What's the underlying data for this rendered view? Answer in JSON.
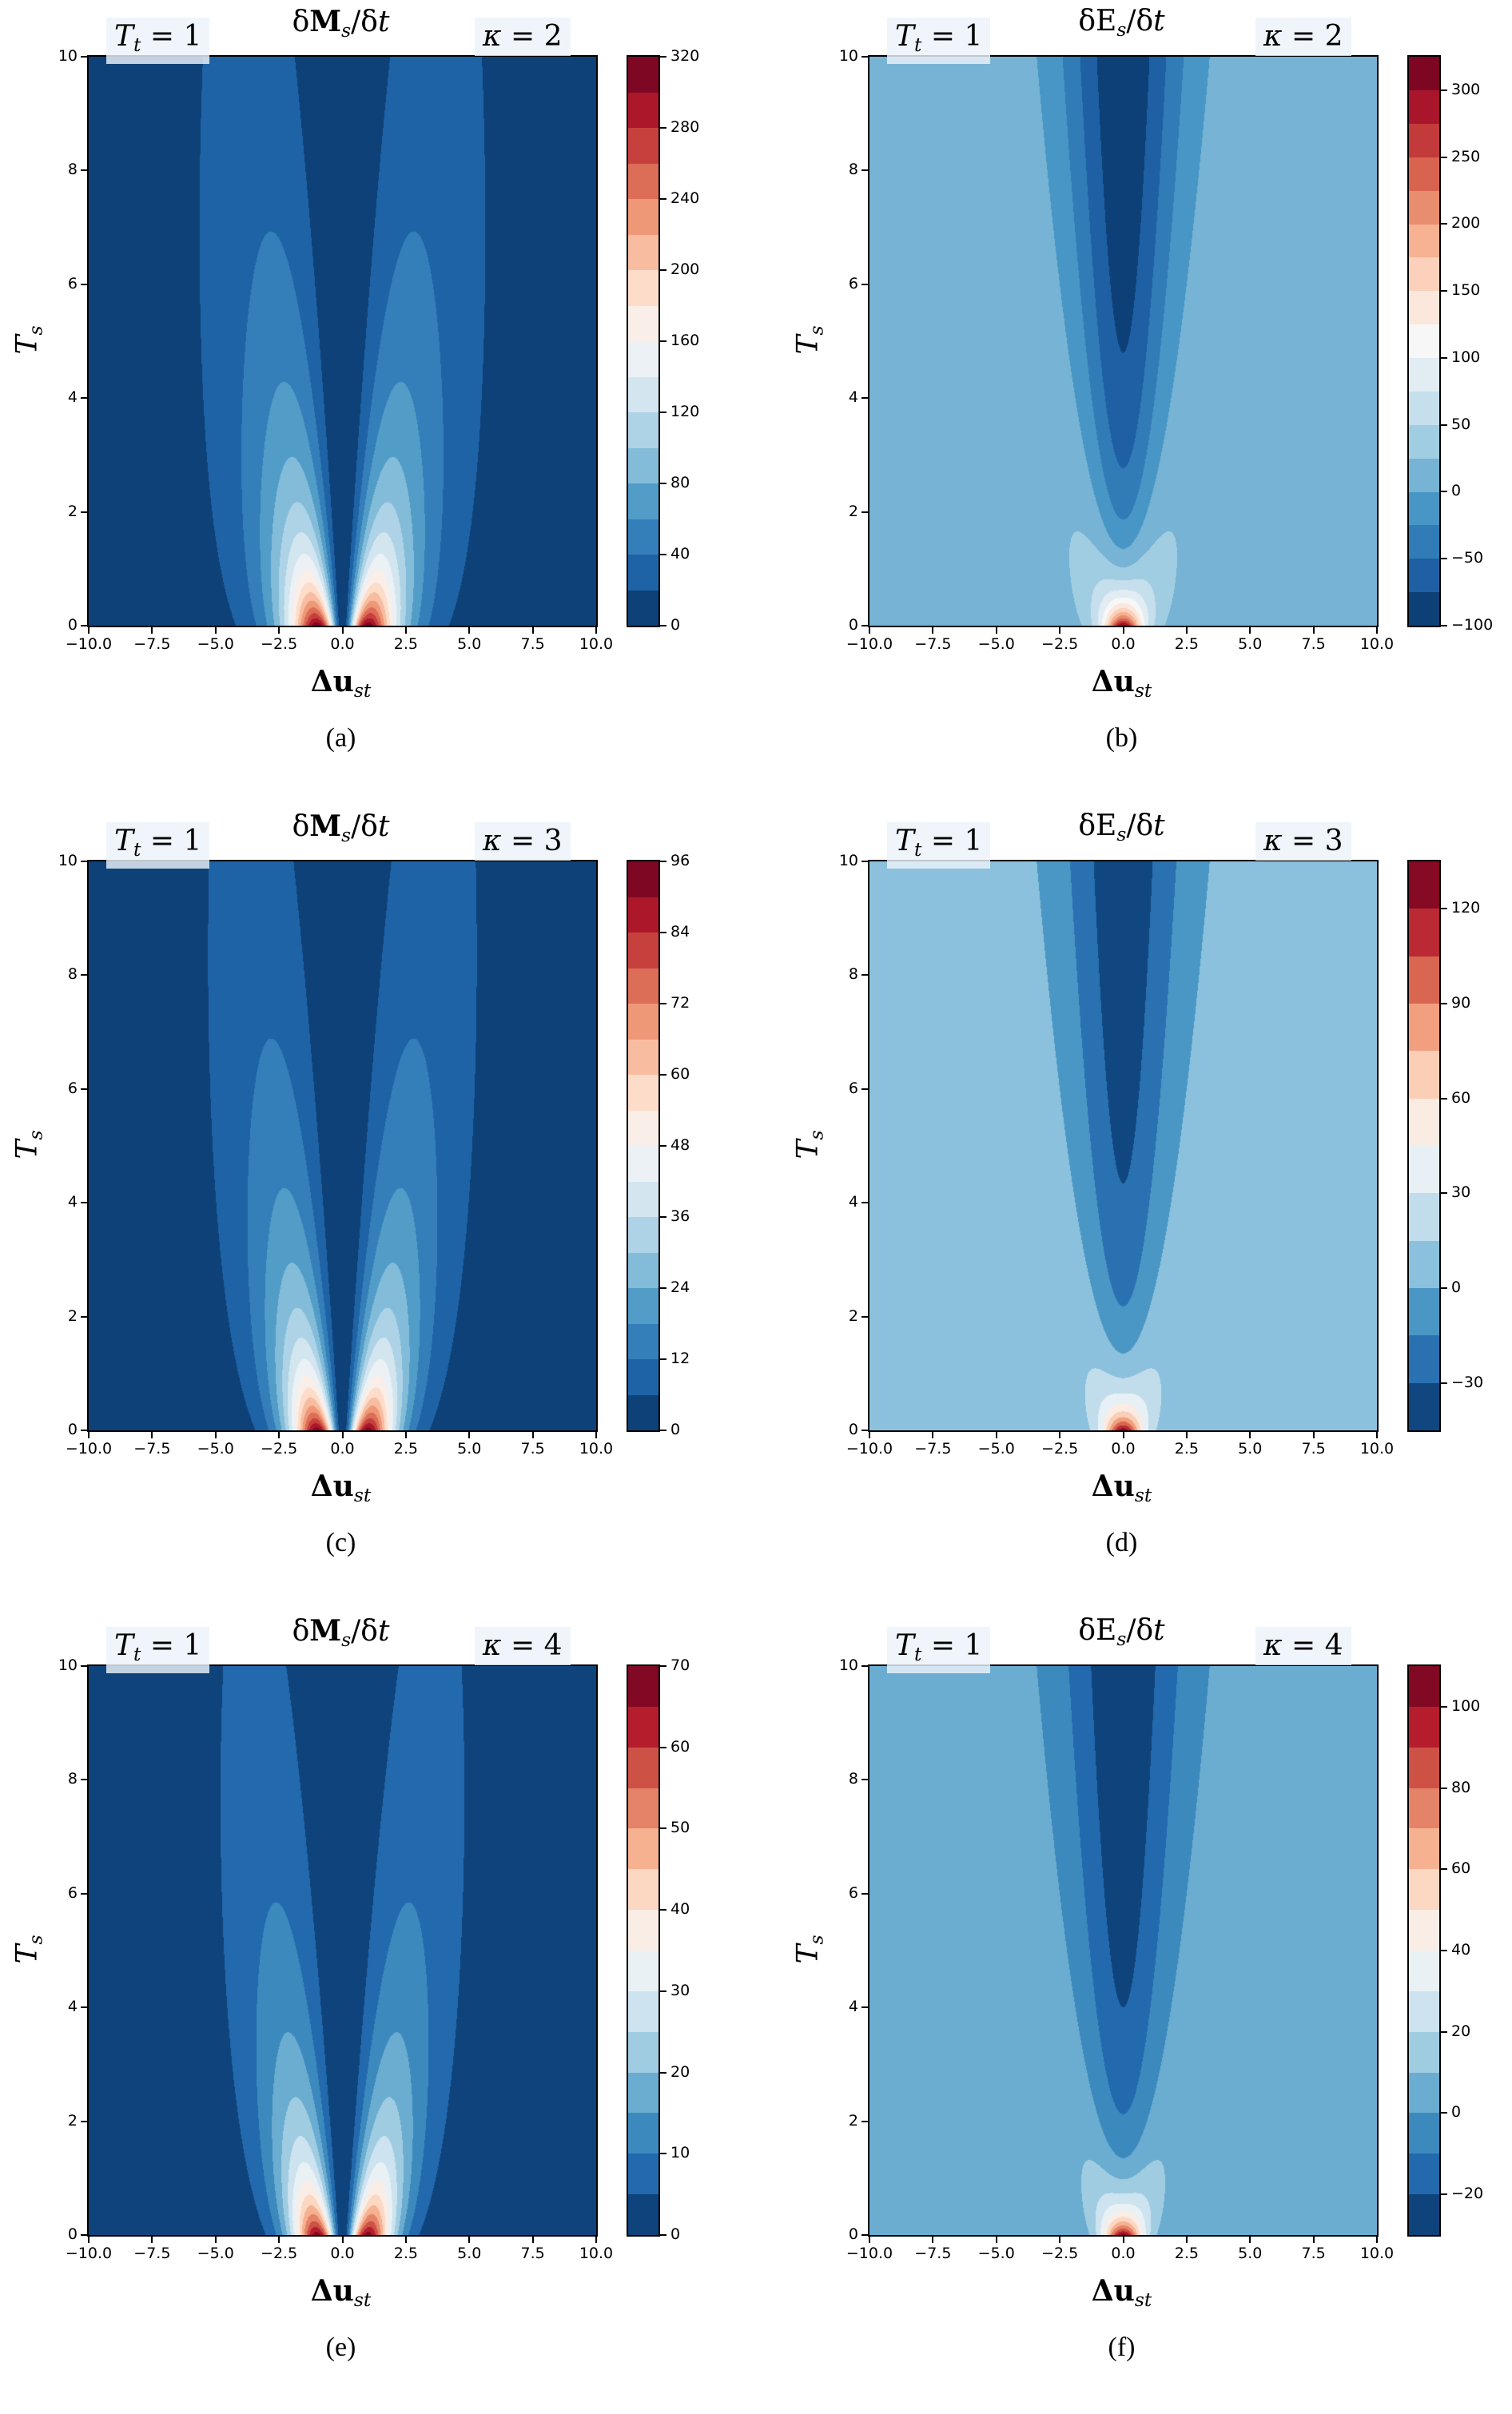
{
  "chart_data": [
    {
      "type": "heatmap",
      "kind": "M",
      "kappa": 2,
      "caption": "(a)",
      "title_parts": [
        "δ",
        "M",
        "s",
        "/δ",
        "t"
      ],
      "xlabel_parts": [
        "Δ",
        "u",
        "st"
      ],
      "ylabel_parts": [
        "T",
        "s"
      ],
      "annot_left": [
        "T",
        "t",
        " = 1"
      ],
      "annot_right": [
        "κ",
        " = 2"
      ],
      "xlim": [
        -10,
        10
      ],
      "ylim": [
        0,
        10
      ],
      "xticks": [
        "−10.0",
        "−7.5",
        "−5.0",
        "−2.5",
        "0.0",
        "2.5",
        "5.0",
        "7.5",
        "10.0"
      ],
      "yticks": [
        "0",
        "2",
        "4",
        "6",
        "8",
        "10"
      ],
      "levels": {
        "min": 0,
        "max": 320,
        "step": 20
      },
      "cbar_ticks": [
        {
          "v": 0,
          "t": "0"
        },
        {
          "v": 40,
          "t": "40"
        },
        {
          "v": 80,
          "t": "80"
        },
        {
          "v": 120,
          "t": "120"
        },
        {
          "v": 160,
          "t": "160"
        },
        {
          "v": 200,
          "t": "200"
        },
        {
          "v": 240,
          "t": "240"
        },
        {
          "v": 280,
          "t": "280"
        },
        {
          "v": 320,
          "t": "320"
        }
      ],
      "data_range": [
        0,
        315
      ]
    },
    {
      "type": "heatmap",
      "kind": "E",
      "kappa": 2,
      "caption": "(b)",
      "title_parts": [
        "δE",
        "s",
        "/δ",
        "t"
      ],
      "xlabel_parts": [
        "Δ",
        "u",
        "st"
      ],
      "ylabel_parts": [
        "T",
        "s"
      ],
      "annot_left": [
        "T",
        "t",
        " = 1"
      ],
      "annot_right": [
        "κ",
        " = 2"
      ],
      "xlim": [
        -10,
        10
      ],
      "ylim": [
        0,
        10
      ],
      "xticks": [
        "−10.0",
        "−7.5",
        "−5.0",
        "−2.5",
        "0.0",
        "2.5",
        "5.0",
        "7.5",
        "10.0"
      ],
      "yticks": [
        "0",
        "2",
        "4",
        "6",
        "8",
        "10"
      ],
      "levels": {
        "min": -100,
        "max": 325,
        "step": 25
      },
      "cbar_ticks": [
        {
          "v": -100,
          "t": "−100"
        },
        {
          "v": -50,
          "t": "−50"
        },
        {
          "v": 0,
          "t": "0"
        },
        {
          "v": 50,
          "t": "50"
        },
        {
          "v": 100,
          "t": "100"
        },
        {
          "v": 150,
          "t": "150"
        },
        {
          "v": 200,
          "t": "200"
        },
        {
          "v": 250,
          "t": "250"
        },
        {
          "v": 300,
          "t": "300"
        }
      ],
      "data_range": [
        -95,
        310
      ]
    },
    {
      "type": "heatmap",
      "kind": "M",
      "kappa": 3,
      "caption": "(c)",
      "title_parts": [
        "δ",
        "M",
        "s",
        "/δ",
        "t"
      ],
      "xlabel_parts": [
        "Δ",
        "u",
        "st"
      ],
      "ylabel_parts": [
        "T",
        "s"
      ],
      "annot_left": [
        "T",
        "t",
        " = 1"
      ],
      "annot_right": [
        "κ",
        " = 3"
      ],
      "xlim": [
        -10,
        10
      ],
      "ylim": [
        0,
        10
      ],
      "xticks": [
        "−10.0",
        "−7.5",
        "−5.0",
        "−2.5",
        "0.0",
        "2.5",
        "5.0",
        "7.5",
        "10.0"
      ],
      "yticks": [
        "0",
        "2",
        "4",
        "6",
        "8",
        "10"
      ],
      "levels": {
        "min": 0,
        "max": 96,
        "step": 6
      },
      "cbar_ticks": [
        {
          "v": 0,
          "t": "0"
        },
        {
          "v": 12,
          "t": "12"
        },
        {
          "v": 24,
          "t": "24"
        },
        {
          "v": 36,
          "t": "36"
        },
        {
          "v": 48,
          "t": "48"
        },
        {
          "v": 60,
          "t": "60"
        },
        {
          "v": 72,
          "t": "72"
        },
        {
          "v": 84,
          "t": "84"
        },
        {
          "v": 96,
          "t": "96"
        }
      ],
      "data_range": [
        0,
        94
      ]
    },
    {
      "type": "heatmap",
      "kind": "E",
      "kappa": 3,
      "caption": "(d)",
      "title_parts": [
        "δE",
        "s",
        "/δ",
        "t"
      ],
      "xlabel_parts": [
        "Δ",
        "u",
        "st"
      ],
      "ylabel_parts": [
        "T",
        "s"
      ],
      "annot_left": [
        "T",
        "t",
        " = 1"
      ],
      "annot_right": [
        "κ",
        " = 3"
      ],
      "xlim": [
        -10,
        10
      ],
      "ylim": [
        0,
        10
      ],
      "xticks": [
        "−10.0",
        "−7.5",
        "−5.0",
        "−2.5",
        "0.0",
        "2.5",
        "5.0",
        "7.5",
        "10.0"
      ],
      "yticks": [
        "0",
        "2",
        "4",
        "6",
        "8",
        "10"
      ],
      "levels": {
        "min": -45,
        "max": 135,
        "step": 15
      },
      "cbar_ticks": [
        {
          "v": -30,
          "t": "−30"
        },
        {
          "v": 0,
          "t": "0"
        },
        {
          "v": 30,
          "t": "30"
        },
        {
          "v": 60,
          "t": "60"
        },
        {
          "v": 90,
          "t": "90"
        },
        {
          "v": 120,
          "t": "120"
        }
      ],
      "data_range": [
        -40,
        130
      ]
    },
    {
      "type": "heatmap",
      "kind": "M",
      "kappa": 4,
      "caption": "(e)",
      "title_parts": [
        "δ",
        "M",
        "s",
        "/δ",
        "t"
      ],
      "xlabel_parts": [
        "Δ",
        "u",
        "st"
      ],
      "ylabel_parts": [
        "T",
        "s"
      ],
      "annot_left": [
        "T",
        "t",
        " = 1"
      ],
      "annot_right": [
        "κ",
        " = 4"
      ],
      "xlim": [
        -10,
        10
      ],
      "ylim": [
        0,
        10
      ],
      "xticks": [
        "−10.0",
        "−7.5",
        "−5.0",
        "−2.5",
        "0.0",
        "2.5",
        "5.0",
        "7.5",
        "10.0"
      ],
      "yticks": [
        "0",
        "2",
        "4",
        "6",
        "8",
        "10"
      ],
      "levels": {
        "min": 0,
        "max": 70,
        "step": 5
      },
      "cbar_ticks": [
        {
          "v": 0,
          "t": "0"
        },
        {
          "v": 10,
          "t": "10"
        },
        {
          "v": 20,
          "t": "20"
        },
        {
          "v": 30,
          "t": "30"
        },
        {
          "v": 40,
          "t": "40"
        },
        {
          "v": 50,
          "t": "50"
        },
        {
          "v": 60,
          "t": "60"
        },
        {
          "v": 70,
          "t": "70"
        }
      ],
      "data_range": [
        0,
        68
      ]
    },
    {
      "type": "heatmap",
      "kind": "E",
      "kappa": 4,
      "caption": "(f)",
      "title_parts": [
        "δE",
        "s",
        "/δ",
        "t"
      ],
      "xlabel_parts": [
        "Δ",
        "u",
        "st"
      ],
      "ylabel_parts": [
        "T",
        "s"
      ],
      "annot_left": [
        "T",
        "t",
        " = 1"
      ],
      "annot_right": [
        "κ",
        " = 4"
      ],
      "xlim": [
        -10,
        10
      ],
      "ylim": [
        0,
        10
      ],
      "xticks": [
        "−10.0",
        "−7.5",
        "−5.0",
        "−2.5",
        "0.0",
        "2.5",
        "5.0",
        "7.5",
        "10.0"
      ],
      "yticks": [
        "0",
        "2",
        "4",
        "6",
        "8",
        "10"
      ],
      "levels": {
        "min": -30,
        "max": 110,
        "step": 10
      },
      "cbar_ticks": [
        {
          "v": -20,
          "t": "−20"
        },
        {
          "v": 0,
          "t": "0"
        },
        {
          "v": 20,
          "t": "20"
        },
        {
          "v": 40,
          "t": "40"
        },
        {
          "v": 60,
          "t": "60"
        },
        {
          "v": 80,
          "t": "80"
        },
        {
          "v": 100,
          "t": "100"
        }
      ],
      "data_range": [
        -28,
        105
      ]
    }
  ],
  "colors": {
    "cmap": [
      "#053061",
      "#2166ac",
      "#4393c3",
      "#92c5de",
      "#d1e5f0",
      "#f7f7f7",
      "#fddbc7",
      "#f4a582",
      "#d6604d",
      "#b2182b",
      "#67001f"
    ]
  }
}
